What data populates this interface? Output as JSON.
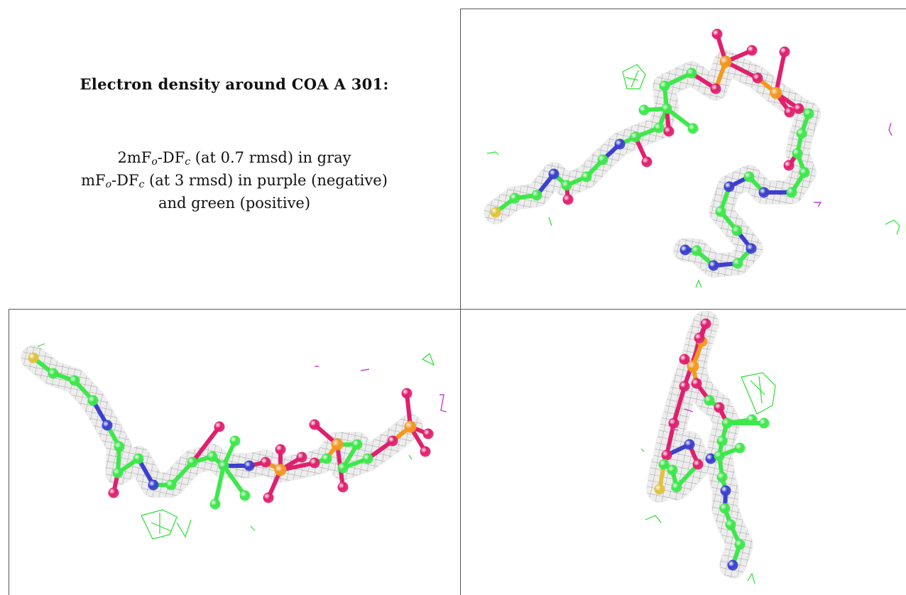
{
  "caption": {
    "title": "Electron density around COA A 301:",
    "line1": {
      "a": "2mF",
      "o": "o",
      "b": "-DF",
      "c": "c",
      "rest": " (at 0.7 rmsd) in gray"
    },
    "line2": {
      "a": "mF",
      "o": "o",
      "b": "-DF",
      "c": "c",
      "rest": " (at 3 rmsd) in purple (negative)"
    },
    "line3": "and green (positive)"
  },
  "colors": {
    "carbon": "#3de84a",
    "oxygen": "#e01f6e",
    "nitrogen": "#3c3fd0",
    "phosphorus": "#f39a1e",
    "sulfur": "#e3c23a",
    "mesh_gray": "#9a9a9a",
    "mesh_green": "#29e02f",
    "mesh_purple": "#c83ad6"
  },
  "views": [
    "view-top-right",
    "view-bottom-left",
    "view-bottom-right"
  ]
}
